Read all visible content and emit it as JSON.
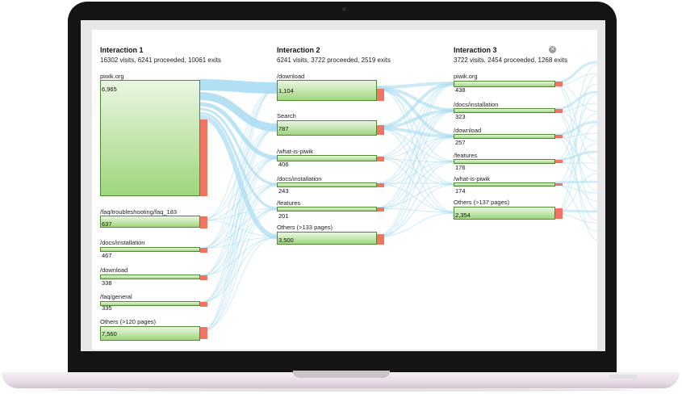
{
  "columns": [
    {
      "title": "Interaction 1",
      "summary": "16302 visits, 6241 proceeded, 10061 exits",
      "nodes": [
        {
          "label": "piwik.org",
          "value": "6,965"
        },
        {
          "label": "/faq/troubleshooting/faq_183",
          "value": "637"
        },
        {
          "label": "/docs/installation",
          "value": "467"
        },
        {
          "label": "/download",
          "value": "338"
        },
        {
          "label": "/faq/general",
          "value": "335"
        },
        {
          "label": "Others (>120 pages)",
          "value": "7,560"
        }
      ]
    },
    {
      "title": "Interaction 2",
      "summary": "6241 visits, 3722 proceeded, 2519 exits",
      "nodes": [
        {
          "label": "/download",
          "value": "1,104"
        },
        {
          "label": "Search",
          "value": "787"
        },
        {
          "label": "/what-is-piwik",
          "value": "406"
        },
        {
          "label": "/docs/installation",
          "value": "243"
        },
        {
          "label": "/features",
          "value": "201"
        },
        {
          "label": "Others (>133 pages)",
          "value": "3,500"
        }
      ]
    },
    {
      "title": "Interaction 3",
      "summary": "3722 visits, 2454 proceeded, 1268 exits",
      "nodes": [
        {
          "label": "piwik.org",
          "value": "438"
        },
        {
          "label": "/docs/installation",
          "value": "323"
        },
        {
          "label": "/download",
          "value": "257"
        },
        {
          "label": "/features",
          "value": "176"
        },
        {
          "label": "/what-is-piwik",
          "value": "174"
        },
        {
          "label": "Others (>137 pages)",
          "value": "2,354"
        }
      ]
    }
  ],
  "colors": {
    "bar_fill": "#9fd67d",
    "bar_border": "#4e8a34",
    "exit": "#ef7462",
    "flow": "#a9dcf2"
  },
  "close_icon": "close-icon"
}
